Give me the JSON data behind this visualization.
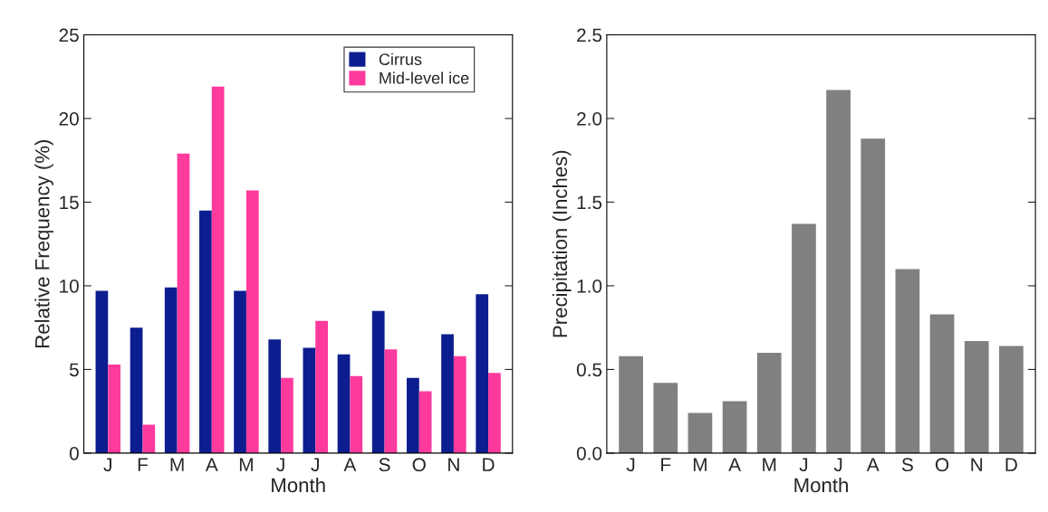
{
  "chart_data": [
    {
      "type": "bar",
      "xlabel": "Month",
      "ylabel": "Relative Frequency (%)",
      "categories": [
        "J",
        "F",
        "M",
        "A",
        "M",
        "J",
        "J",
        "A",
        "S",
        "O",
        "N",
        "D"
      ],
      "series": [
        {
          "name": "Cirrus",
          "color": "#0b1d8f",
          "values": [
            9.7,
            7.5,
            9.9,
            14.5,
            9.7,
            6.8,
            6.3,
            5.9,
            8.5,
            4.5,
            7.1,
            9.5
          ]
        },
        {
          "name": "Mid-level ice",
          "color": "#ff3a9d",
          "values": [
            5.3,
            1.7,
            17.9,
            21.9,
            15.7,
            4.5,
            7.9,
            4.6,
            6.2,
            3.7,
            5.8,
            4.8
          ]
        }
      ],
      "ylim": [
        0,
        25
      ],
      "yticks": [
        0,
        5,
        10,
        15,
        20,
        25
      ],
      "grid": false,
      "legend": "top right"
    },
    {
      "type": "bar",
      "xlabel": "Month",
      "ylabel": "Precipitation (Inches)",
      "categories": [
        "J",
        "F",
        "M",
        "A",
        "M",
        "J",
        "J",
        "A",
        "S",
        "O",
        "N",
        "D"
      ],
      "series": [
        {
          "color": "#808080",
          "values": [
            0.58,
            0.42,
            0.24,
            0.31,
            0.6,
            1.37,
            2.17,
            1.88,
            1.1,
            0.83,
            0.67,
            0.64
          ]
        }
      ],
      "ylim": [
        0,
        2.5
      ],
      "yticks": [
        {
          "value": 0,
          "label": "0.0"
        },
        {
          "value": 0.5,
          "label": "0.5"
        },
        {
          "value": 1,
          "label": "1.0"
        },
        {
          "value": 1.5,
          "label": "1.5"
        },
        {
          "value": 2,
          "label": "2.0"
        },
        {
          "value": 2.5,
          "label": "2.5"
        }
      ],
      "grid": false,
      "legend": false
    }
  ]
}
